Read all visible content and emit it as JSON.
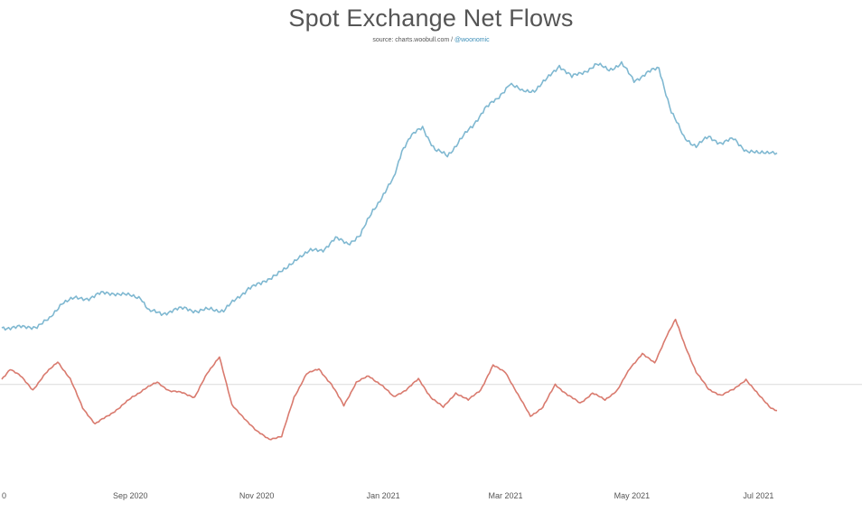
{
  "chart_data": {
    "type": "line",
    "title": "Spot Exchange Net Flows",
    "source_label": "source: charts.woobull.com /",
    "source_handle": "@woonomic",
    "x_tick_labels": [
      "0",
      "Sep 2020",
      "Nov 2020",
      "Jan 2021",
      "Mar 2021",
      "May 2021",
      "Jul 2021"
    ],
    "x_tick_dates": [
      "2020-07-01",
      "2020-09-01",
      "2020-11-01",
      "2021-01-01",
      "2021-03-01",
      "2021-05-01",
      "2021-07-01"
    ],
    "xlim": [
      "2020-07-01",
      "2021-07-10"
    ],
    "y_axis_labels_visible": false,
    "grid": false,
    "zero_line": true,
    "series": [
      {
        "color": "#7fb8d1",
        "points": [
          [
            "2020-07-01",
            6
          ],
          [
            "2020-07-06",
            7
          ],
          [
            "2020-07-12",
            6
          ],
          [
            "2020-07-18",
            8
          ],
          [
            "2020-07-24",
            14
          ],
          [
            "2020-07-30",
            31
          ],
          [
            "2020-08-05",
            34
          ],
          [
            "2020-08-12",
            35
          ],
          [
            "2020-08-18",
            39
          ],
          [
            "2020-08-24",
            40
          ],
          [
            "2020-08-31",
            37
          ],
          [
            "2020-09-06",
            36
          ],
          [
            "2020-09-10",
            22
          ],
          [
            "2020-09-16",
            20
          ],
          [
            "2020-09-22",
            23
          ],
          [
            "2020-09-28",
            25
          ],
          [
            "2020-10-04",
            22
          ],
          [
            "2020-10-10",
            24
          ],
          [
            "2020-10-16",
            23
          ],
          [
            "2020-10-22",
            33
          ],
          [
            "2020-10-28",
            45
          ],
          [
            "2020-11-03",
            48
          ],
          [
            "2020-11-09",
            57
          ],
          [
            "2020-11-15",
            62
          ],
          [
            "2020-11-21",
            75
          ],
          [
            "2020-11-27",
            80
          ],
          [
            "2020-12-03",
            82
          ],
          [
            "2020-12-09",
            92
          ],
          [
            "2020-12-15",
            88
          ],
          [
            "2020-12-21",
            95
          ],
          [
            "2020-12-27",
            120
          ],
          [
            "2021-01-02",
            137
          ],
          [
            "2021-01-06",
            150
          ],
          [
            "2021-01-10",
            178
          ],
          [
            "2021-01-14",
            190
          ],
          [
            "2021-01-20",
            200
          ],
          [
            "2021-01-26",
            178
          ],
          [
            "2021-02-01",
            172
          ],
          [
            "2021-02-07",
            188
          ],
          [
            "2021-02-13",
            200
          ],
          [
            "2021-02-19",
            219
          ],
          [
            "2021-02-25",
            226
          ],
          [
            "2021-03-03",
            243
          ],
          [
            "2021-03-09",
            234
          ],
          [
            "2021-03-15",
            236
          ],
          [
            "2021-03-21",
            246
          ],
          [
            "2021-03-27",
            260
          ],
          [
            "2021-04-02",
            248
          ],
          [
            "2021-04-08",
            254
          ],
          [
            "2021-04-14",
            260
          ],
          [
            "2021-04-20",
            256
          ],
          [
            "2021-04-26",
            261
          ],
          [
            "2021-05-02",
            245
          ],
          [
            "2021-05-08",
            252
          ],
          [
            "2021-05-14",
            257
          ],
          [
            "2021-05-20",
            215
          ],
          [
            "2021-05-26",
            190
          ],
          [
            "2021-06-01",
            182
          ],
          [
            "2021-06-07",
            190
          ],
          [
            "2021-06-13",
            185
          ],
          [
            "2021-06-19",
            188
          ],
          [
            "2021-06-25",
            178
          ],
          [
            "2021-07-01",
            174
          ],
          [
            "2021-07-07",
            177
          ],
          [
            "2021-07-10",
            175
          ]
        ]
      },
      {
        "color": "#d97a6e",
        "points": [
          [
            "2020-07-01",
            5
          ],
          [
            "2020-07-05",
            15
          ],
          [
            "2020-07-10",
            8
          ],
          [
            "2020-07-16",
            -5
          ],
          [
            "2020-07-22",
            10
          ],
          [
            "2020-07-28",
            22
          ],
          [
            "2020-08-03",
            5
          ],
          [
            "2020-08-09",
            -22
          ],
          [
            "2020-08-15",
            -38
          ],
          [
            "2020-08-21",
            -30
          ],
          [
            "2020-08-27",
            -22
          ],
          [
            "2020-09-02",
            -12
          ],
          [
            "2020-09-08",
            -4
          ],
          [
            "2020-09-14",
            2
          ],
          [
            "2020-09-20",
            -6
          ],
          [
            "2020-09-26",
            -8
          ],
          [
            "2020-10-02",
            -12
          ],
          [
            "2020-10-08",
            10
          ],
          [
            "2020-10-14",
            27
          ],
          [
            "2020-10-20",
            -20
          ],
          [
            "2020-10-26",
            -32
          ],
          [
            "2020-11-01",
            -45
          ],
          [
            "2020-11-07",
            -52
          ],
          [
            "2020-11-13",
            -50
          ],
          [
            "2020-11-19",
            -12
          ],
          [
            "2020-11-25",
            10
          ],
          [
            "2020-12-01",
            15
          ],
          [
            "2020-12-07",
            0
          ],
          [
            "2020-12-13",
            -20
          ],
          [
            "2020-12-19",
            2
          ],
          [
            "2020-12-25",
            8
          ],
          [
            "2020-12-31",
            0
          ],
          [
            "2021-01-06",
            -12
          ],
          [
            "2021-01-12",
            -5
          ],
          [
            "2021-01-18",
            5
          ],
          [
            "2021-01-24",
            -12
          ],
          [
            "2021-01-30",
            -22
          ],
          [
            "2021-02-05",
            -8
          ],
          [
            "2021-02-11",
            -15
          ],
          [
            "2021-02-17",
            -5
          ],
          [
            "2021-02-23",
            18
          ],
          [
            "2021-03-01",
            12
          ],
          [
            "2021-03-07",
            -10
          ],
          [
            "2021-03-13",
            -30
          ],
          [
            "2021-03-19",
            -22
          ],
          [
            "2021-03-25",
            0
          ],
          [
            "2021-03-31",
            -10
          ],
          [
            "2021-04-06",
            -18
          ],
          [
            "2021-04-12",
            -8
          ],
          [
            "2021-04-18",
            -15
          ],
          [
            "2021-04-24",
            -5
          ],
          [
            "2021-04-30",
            15
          ],
          [
            "2021-05-06",
            30
          ],
          [
            "2021-05-12",
            20
          ],
          [
            "2021-05-18",
            48
          ],
          [
            "2021-05-22",
            62
          ],
          [
            "2021-05-26",
            40
          ],
          [
            "2021-06-01",
            12
          ],
          [
            "2021-06-07",
            -5
          ],
          [
            "2021-06-13",
            -10
          ],
          [
            "2021-06-19",
            -5
          ],
          [
            "2021-06-25",
            5
          ],
          [
            "2021-07-01",
            -10
          ],
          [
            "2021-07-07",
            -22
          ],
          [
            "2021-07-10",
            -25
          ]
        ]
      }
    ]
  }
}
